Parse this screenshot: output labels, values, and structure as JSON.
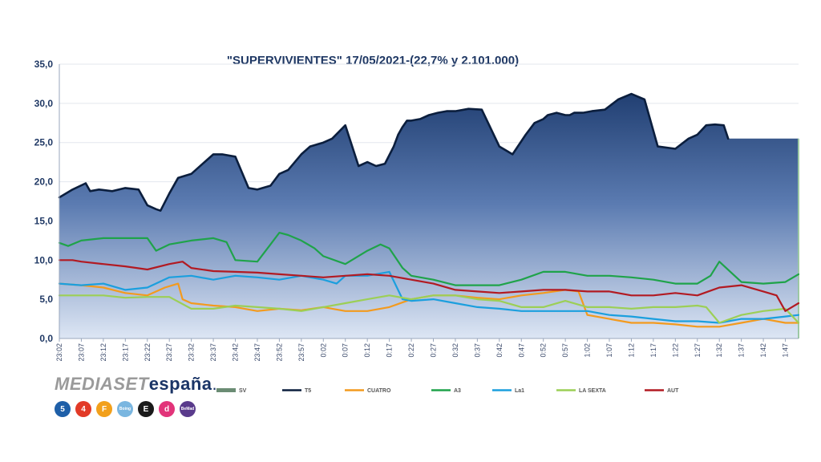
{
  "chart_data": {
    "type": "area",
    "title": "\"SUPERVIVIENTES\" 17/05/2021-(22,7% y 2.101.000)",
    "ylim": [
      0,
      35
    ],
    "yticks": [
      "0,0",
      "5,0",
      "10,0",
      "15,0",
      "20,0",
      "25,0",
      "30,0",
      "35,0"
    ],
    "ytick_values": [
      0,
      5,
      10,
      15,
      20,
      25,
      30,
      35
    ],
    "x_start_minute": 0,
    "x_end_minute": 168,
    "x_tick_labels": [
      "23:02",
      "23:07",
      "23:12",
      "23:17",
      "23:22",
      "23:27",
      "23:32",
      "23:37",
      "23:42",
      "23:47",
      "23:52",
      "23:57",
      "0:02",
      "0:07",
      "0:12",
      "0:17",
      "0:22",
      "0:27",
      "0:32",
      "0:37",
      "0:42",
      "0:47",
      "0:52",
      "0:57",
      "1:02",
      "1:07",
      "1:12",
      "1:17",
      "1:22",
      "1:27",
      "1:32",
      "1:37",
      "1:42",
      "1:47"
    ],
    "x_tick_minutes": [
      0,
      5,
      10,
      15,
      20,
      25,
      30,
      35,
      40,
      45,
      50,
      55,
      60,
      65,
      70,
      75,
      80,
      85,
      90,
      95,
      100,
      105,
      110,
      115,
      120,
      125,
      130,
      135,
      140,
      145,
      150,
      155,
      160,
      165
    ],
    "series": [
      {
        "name": "SV",
        "kind": "area",
        "color": "#2c4a7c",
        "x": [
          0,
          3,
          6,
          7,
          9,
          12,
          15,
          18,
          20,
          22,
          23,
          25,
          27,
          30,
          33,
          35,
          37,
          40,
          43,
          45,
          48,
          50,
          52,
          55,
          57,
          60,
          62,
          65,
          68,
          70,
          72,
          74,
          76,
          77,
          78,
          79,
          80,
          82,
          84,
          86,
          88,
          90,
          93,
          96,
          100,
          103,
          106,
          108,
          110,
          111,
          113,
          115,
          116,
          117,
          119,
          121,
          124,
          127,
          130,
          133,
          136,
          140,
          143,
          145,
          147,
          149,
          151,
          152,
          153,
          154,
          155,
          157,
          160,
          163,
          165,
          166,
          167,
          168
        ],
        "values": [
          18.0,
          19.0,
          19.8,
          18.8,
          19.0,
          18.8,
          19.2,
          19.0,
          17.0,
          16.5,
          16.3,
          18.5,
          20.5,
          21.0,
          22.5,
          23.5,
          23.5,
          23.2,
          19.2,
          19.0,
          19.5,
          21.0,
          21.5,
          23.5,
          24.5,
          25.0,
          25.5,
          27.2,
          22.0,
          22.5,
          22.0,
          22.3,
          24.5,
          26.0,
          27.0,
          27.8,
          27.8,
          28.0,
          28.5,
          28.8,
          29.0,
          29.0,
          29.3,
          29.2,
          24.5,
          23.5,
          26.0,
          27.5,
          28.0,
          28.5,
          28.8,
          28.5,
          28.5,
          28.8,
          28.8,
          29.0,
          29.2,
          30.5,
          31.2,
          30.5,
          24.5,
          24.2,
          25.5,
          26.0,
          27.2,
          27.3,
          27.2,
          25.5,
          25.5,
          25.5,
          25.5,
          25.5,
          25.5,
          25.5,
          25.5,
          25.5,
          25.5,
          25.5
        ]
      },
      {
        "name": "T5",
        "kind": "line",
        "color": "#0b1e3d",
        "x": [
          0,
          3,
          6,
          7,
          9,
          12,
          15,
          18,
          20,
          22,
          23,
          25,
          27,
          30,
          33,
          35,
          37,
          40,
          43,
          45,
          48,
          50,
          52,
          55,
          57,
          60,
          62,
          65,
          68,
          70,
          72,
          74,
          76,
          77,
          78,
          79,
          80,
          82,
          84,
          86,
          88,
          90,
          93,
          96,
          100,
          103,
          106,
          108,
          110,
          111,
          113,
          115,
          116,
          117,
          119,
          121,
          124,
          127,
          130,
          133,
          136,
          140,
          143,
          145,
          147,
          149,
          151,
          152
        ],
        "values": [
          18.0,
          19.0,
          19.8,
          18.8,
          19.0,
          18.8,
          19.2,
          19.0,
          17.0,
          16.5,
          16.3,
          18.5,
          20.5,
          21.0,
          22.5,
          23.5,
          23.5,
          23.2,
          19.2,
          19.0,
          19.5,
          21.0,
          21.5,
          23.5,
          24.5,
          25.0,
          25.5,
          27.2,
          22.0,
          22.5,
          22.0,
          22.3,
          24.5,
          26.0,
          27.0,
          27.8,
          27.8,
          28.0,
          28.5,
          28.8,
          29.0,
          29.0,
          29.3,
          29.2,
          24.5,
          23.5,
          26.0,
          27.5,
          28.0,
          28.5,
          28.8,
          28.5,
          28.5,
          28.8,
          28.8,
          29.0,
          29.2,
          30.5,
          31.2,
          30.5,
          24.5,
          24.2,
          25.5,
          26.0,
          27.2,
          27.3,
          27.2,
          25.5
        ]
      },
      {
        "name": "CUATRO",
        "kind": "line",
        "color": "#f39a1e",
        "x": [
          0,
          5,
          10,
          15,
          20,
          24,
          27,
          28,
          30,
          35,
          40,
          45,
          50,
          55,
          60,
          65,
          70,
          75,
          80,
          85,
          90,
          95,
          100,
          105,
          110,
          115,
          118,
          120,
          125,
          130,
          135,
          140,
          145,
          150,
          155,
          160,
          165,
          168
        ],
        "values": [
          7.0,
          6.8,
          6.5,
          5.8,
          5.5,
          6.5,
          7.0,
          5.0,
          4.5,
          4.2,
          4.0,
          3.5,
          3.8,
          3.6,
          4.0,
          3.5,
          3.5,
          4.0,
          5.0,
          5.5,
          5.5,
          5.2,
          5.0,
          5.5,
          5.8,
          6.2,
          6.0,
          3.0,
          2.5,
          2.0,
          2.0,
          1.8,
          1.5,
          1.5,
          2.0,
          2.5,
          2.0,
          2.0
        ]
      },
      {
        "name": "A3",
        "kind": "line",
        "color": "#1fa34a",
        "x": [
          0,
          2,
          5,
          10,
          15,
          20,
          22,
          25,
          30,
          35,
          38,
          40,
          45,
          48,
          50,
          52,
          55,
          58,
          60,
          65,
          70,
          73,
          75,
          78,
          80,
          85,
          90,
          95,
          100,
          105,
          110,
          115,
          120,
          125,
          130,
          135,
          140,
          145,
          148,
          150,
          155,
          160,
          165,
          168
        ],
        "values": [
          12.2,
          11.8,
          12.5,
          12.8,
          12.8,
          12.8,
          11.2,
          12.0,
          12.5,
          12.8,
          12.3,
          10.0,
          9.8,
          12.0,
          13.5,
          13.2,
          12.5,
          11.5,
          10.5,
          9.5,
          11.2,
          12.0,
          11.5,
          9.0,
          8.0,
          7.5,
          6.8,
          6.8,
          6.8,
          7.5,
          8.5,
          8.5,
          8.0,
          8.0,
          7.8,
          7.5,
          7.0,
          7.0,
          8.0,
          9.8,
          7.2,
          7.0,
          7.2,
          8.2
        ]
      },
      {
        "name": "La1",
        "kind": "line",
        "color": "#1b9fde",
        "x": [
          0,
          5,
          10,
          15,
          20,
          25,
          30,
          35,
          40,
          45,
          50,
          55,
          60,
          63,
          65,
          70,
          75,
          78,
          80,
          85,
          90,
          95,
          100,
          105,
          110,
          115,
          120,
          125,
          130,
          135,
          140,
          145,
          150,
          155,
          160,
          165,
          168
        ],
        "values": [
          7.0,
          6.8,
          7.0,
          6.2,
          6.5,
          7.8,
          8.0,
          7.5,
          8.0,
          7.8,
          7.5,
          8.0,
          7.5,
          7.0,
          8.0,
          8.0,
          8.5,
          5.0,
          4.8,
          5.0,
          4.5,
          4.0,
          3.8,
          3.5,
          3.5,
          3.5,
          3.5,
          3.0,
          2.8,
          2.5,
          2.2,
          2.2,
          2.0,
          2.5,
          2.5,
          2.8,
          3.0
        ]
      },
      {
        "name": "LA SEXTA",
        "kind": "line",
        "color": "#9ccf56",
        "x": [
          0,
          5,
          10,
          15,
          20,
          25,
          30,
          35,
          40,
          45,
          50,
          55,
          60,
          65,
          70,
          75,
          80,
          85,
          90,
          95,
          100,
          105,
          110,
          115,
          120,
          125,
          130,
          135,
          140,
          145,
          147,
          150,
          155,
          160,
          165,
          168
        ],
        "values": [
          5.5,
          5.5,
          5.5,
          5.2,
          5.3,
          5.3,
          3.8,
          3.8,
          4.2,
          4.0,
          3.8,
          3.5,
          4.0,
          4.5,
          5.0,
          5.5,
          5.0,
          5.5,
          5.5,
          5.0,
          4.8,
          4.0,
          4.0,
          4.8,
          4.0,
          4.0,
          3.8,
          4.0,
          4.0,
          4.2,
          4.0,
          2.0,
          3.0,
          3.5,
          3.8,
          2.0
        ]
      },
      {
        "name": "AUT",
        "kind": "line",
        "color": "#b21a22",
        "x": [
          0,
          3,
          5,
          10,
          15,
          20,
          25,
          28,
          30,
          35,
          40,
          45,
          50,
          55,
          60,
          65,
          70,
          75,
          80,
          85,
          90,
          95,
          100,
          105,
          110,
          115,
          120,
          125,
          130,
          135,
          140,
          145,
          150,
          155,
          160,
          163,
          165,
          168
        ],
        "values": [
          10.0,
          10.0,
          9.8,
          9.5,
          9.2,
          8.8,
          9.5,
          9.8,
          9.0,
          8.6,
          8.5,
          8.4,
          8.2,
          8.0,
          7.8,
          8.0,
          8.2,
          8.0,
          7.5,
          7.0,
          6.2,
          6.0,
          5.8,
          6.0,
          6.2,
          6.2,
          6.0,
          6.0,
          5.5,
          5.5,
          5.8,
          5.5,
          6.5,
          6.8,
          6.0,
          5.5,
          3.5,
          4.5
        ]
      }
    ]
  },
  "legend": [
    {
      "label": "SV",
      "color": "#6b8c74"
    },
    {
      "label": "T5",
      "color": "#0b1e3d"
    },
    {
      "label": "CUATRO",
      "color": "#f39a1e"
    },
    {
      "label": "A3",
      "color": "#1fa34a"
    },
    {
      "label": "La1",
      "color": "#1b9fde"
    },
    {
      "label": "LA SEXTA",
      "color": "#9ccf56"
    },
    {
      "label": "AUT",
      "color": "#b21a22"
    }
  ],
  "brand": {
    "part1": "MEDIASET",
    "part2": "españa",
    "dot": "."
  },
  "channels": [
    {
      "label": "5",
      "color": "#1e5fa8"
    },
    {
      "label": "4",
      "color": "#e23a27"
    },
    {
      "label": "F",
      "color": "#f2a01b"
    },
    {
      "label": "Boing",
      "color": "#7ab6e0"
    },
    {
      "label": "E",
      "color": "#1a1a1a"
    },
    {
      "label": "d",
      "color": "#e2347a"
    },
    {
      "label": "BeMad",
      "color": "#5a3b8c"
    }
  ]
}
